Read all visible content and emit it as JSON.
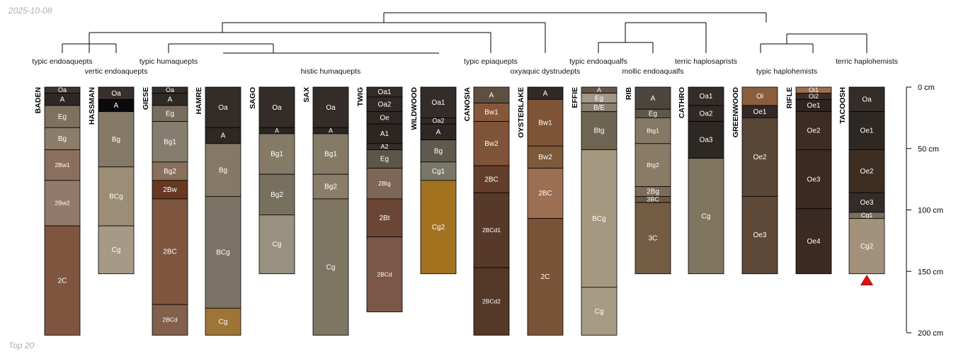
{
  "header": {
    "date": "2025-10-08"
  },
  "footer": {
    "caption": "Top 20"
  },
  "depth_axis": {
    "max_cm": 200,
    "ticks": [
      0,
      50,
      100,
      150,
      200
    ],
    "unit": "cm"
  },
  "colors": {
    "line": "#000000",
    "axis": "#000000",
    "marker": "#e01010"
  },
  "taxa": [
    {
      "id": "typic-endoaquepts",
      "label": "typic endoaquepts"
    },
    {
      "id": "vertic-endoaquepts",
      "label": "vertic endoaquepts"
    },
    {
      "id": "typic-humaquepts",
      "label": "typic humaquepts"
    },
    {
      "id": "histic-humaquepts",
      "label": "histic humaquepts"
    },
    {
      "id": "typic-epiaquepts",
      "label": "typic epiaquepts"
    },
    {
      "id": "oxyaquic-dystrudepts",
      "label": "oxyaquic dystrudepts"
    },
    {
      "id": "typic-endoaqualfs",
      "label": "typic endoaqualfs"
    },
    {
      "id": "mollic-endoaqualfs",
      "label": "mollic endoaqualfs"
    },
    {
      "id": "terric-haplosaprists",
      "label": "terric haplosaprists"
    },
    {
      "id": "typic-haplohemists",
      "label": "typic haplohemists"
    },
    {
      "id": "terric-haplohemists",
      "label": "terric haplohemists"
    }
  ],
  "profiles": [
    {
      "name": "BADEN",
      "horizons": [
        {
          "top": 0,
          "bottom": 5,
          "name": "Oa",
          "color": "#3c3430"
        },
        {
          "top": 5,
          "bottom": 15,
          "name": "A",
          "color": "#2e2824"
        },
        {
          "top": 15,
          "bottom": 33,
          "name": "Eg",
          "color": "#7e725e"
        },
        {
          "top": 33,
          "bottom": 51,
          "name": "Bg",
          "color": "#8a7d69"
        },
        {
          "top": 51,
          "bottom": 76,
          "name": "2Bw1",
          "color": "#8a6f5e"
        },
        {
          "top": 76,
          "bottom": 113,
          "name": "2Bw2",
          "color": "#917a6a"
        },
        {
          "top": 113,
          "bottom": 202,
          "name": "2C",
          "color": "#7e5640"
        }
      ]
    },
    {
      "name": "HASSMAN",
      "horizons": [
        {
          "top": 0,
          "bottom": 10,
          "name": "Oa",
          "color": "#39302c"
        },
        {
          "top": 10,
          "bottom": 20,
          "name": "A",
          "color": "#0a0a0a"
        },
        {
          "top": 20,
          "bottom": 65,
          "name": "Bg",
          "color": "#857967"
        },
        {
          "top": 65,
          "bottom": 113,
          "name": "BCg",
          "color": "#9c8d77"
        },
        {
          "top": 113,
          "bottom": 152,
          "name": "Cg",
          "color": "#a69a86"
        }
      ]
    },
    {
      "name": "GIESE",
      "horizons": [
        {
          "top": 0,
          "bottom": 5,
          "name": "Oa",
          "color": "#352d29"
        },
        {
          "top": 5,
          "bottom": 15,
          "name": "A",
          "color": "#302a26"
        },
        {
          "top": 15,
          "bottom": 28,
          "name": "Eg",
          "color": "#786d5f"
        },
        {
          "top": 28,
          "bottom": 61,
          "name": "Bg1",
          "color": "#857d6e"
        },
        {
          "top": 61,
          "bottom": 76,
          "name": "Bg2",
          "color": "#8a6f5c"
        },
        {
          "top": 76,
          "bottom": 91,
          "name": "2Bw",
          "color": "#683823"
        },
        {
          "top": 91,
          "bottom": 177,
          "name": "2BC",
          "color": "#7e5640"
        },
        {
          "top": 177,
          "bottom": 202,
          "name": "2BCd",
          "color": "#82604c"
        }
      ]
    },
    {
      "name": "HAMRE",
      "horizons": [
        {
          "top": 0,
          "bottom": 33,
          "name": "Oa",
          "color": "#332c28"
        },
        {
          "top": 33,
          "bottom": 46,
          "name": "A",
          "color": "#2e2824"
        },
        {
          "top": 46,
          "bottom": 89,
          "name": "Bg",
          "color": "#857865"
        },
        {
          "top": 89,
          "bottom": 180,
          "name": "BCg",
          "color": "#7b7365"
        },
        {
          "top": 180,
          "bottom": 202,
          "name": "Cg",
          "color": "#9e7438"
        }
      ]
    },
    {
      "name": "SAGO",
      "horizons": [
        {
          "top": 0,
          "bottom": 33,
          "name": "Oa",
          "color": "#332c28"
        },
        {
          "top": 33,
          "bottom": 38,
          "name": "A",
          "color": "#2c2622"
        },
        {
          "top": 38,
          "bottom": 71,
          "name": "Bg1",
          "color": "#857a66"
        },
        {
          "top": 71,
          "bottom": 104,
          "name": "Bg2",
          "color": "#78705f"
        },
        {
          "top": 104,
          "bottom": 152,
          "name": "Cg",
          "color": "#989080"
        }
      ]
    },
    {
      "name": "SAX",
      "horizons": [
        {
          "top": 0,
          "bottom": 33,
          "name": "Oa",
          "color": "#332c28"
        },
        {
          "top": 33,
          "bottom": 38,
          "name": "A",
          "color": "#2c2622"
        },
        {
          "top": 38,
          "bottom": 71,
          "name": "Bg1",
          "color": "#857a66"
        },
        {
          "top": 71,
          "bottom": 91,
          "name": "Bg2",
          "color": "#8a7d69"
        },
        {
          "top": 91,
          "bottom": 202,
          "name": "Cg",
          "color": "#7e7563"
        }
      ]
    },
    {
      "name": "TWIG",
      "horizons": [
        {
          "top": 0,
          "bottom": 8,
          "name": "Oa1",
          "color": "#322b27"
        },
        {
          "top": 8,
          "bottom": 20,
          "name": "Oa2",
          "color": "#302925"
        },
        {
          "top": 20,
          "bottom": 30,
          "name": "Oe",
          "color": "#2e2723"
        },
        {
          "top": 30,
          "bottom": 46,
          "name": "A1",
          "color": "#2c2622"
        },
        {
          "top": 46,
          "bottom": 51,
          "name": "A2",
          "color": "#332c28"
        },
        {
          "top": 51,
          "bottom": 66,
          "name": "Eg",
          "color": "#5e5549"
        },
        {
          "top": 66,
          "bottom": 91,
          "name": "2Btg",
          "color": "#7e6657"
        },
        {
          "top": 91,
          "bottom": 122,
          "name": "2Bt",
          "color": "#6b4636"
        },
        {
          "top": 122,
          "bottom": 183,
          "name": "2BCd",
          "color": "#7a5748"
        }
      ]
    },
    {
      "name": "WILDWOOD",
      "horizons": [
        {
          "top": 0,
          "bottom": 25,
          "name": "Oa1",
          "color": "#332c28"
        },
        {
          "top": 25,
          "bottom": 30,
          "name": "Oa2",
          "color": "#302925"
        },
        {
          "top": 30,
          "bottom": 43,
          "name": "A",
          "color": "#2e2824"
        },
        {
          "top": 43,
          "bottom": 61,
          "name": "Bg",
          "color": "#5e5a4e"
        },
        {
          "top": 61,
          "bottom": 76,
          "name": "Cg1",
          "color": "#7a7668"
        },
        {
          "top": 76,
          "bottom": 152,
          "name": "Cg2",
          "color": "#a2721f"
        }
      ]
    },
    {
      "name": "CANOSIA",
      "horizons": [
        {
          "top": 0,
          "bottom": 13,
          "name": "A",
          "color": "#5e5040"
        },
        {
          "top": 13,
          "bottom": 28,
          "name": "Bw1",
          "color": "#86583a"
        },
        {
          "top": 28,
          "bottom": 64,
          "name": "Bw2",
          "color": "#7e5338"
        },
        {
          "top": 64,
          "bottom": 86,
          "name": "2BC",
          "color": "#633e2c"
        },
        {
          "top": 86,
          "bottom": 147,
          "name": "2BCd1",
          "color": "#573929"
        },
        {
          "top": 147,
          "bottom": 202,
          "name": "2BCd2",
          "color": "#543828"
        }
      ]
    },
    {
      "name": "OYSTERLAKE",
      "horizons": [
        {
          "top": 0,
          "bottom": 10,
          "name": "A",
          "color": "#302a26"
        },
        {
          "top": 10,
          "bottom": 48,
          "name": "Bw1",
          "color": "#7e5436"
        },
        {
          "top": 48,
          "bottom": 66,
          "name": "Bw2",
          "color": "#7c5a3a"
        },
        {
          "top": 66,
          "bottom": 107,
          "name": "2BC",
          "color": "#9c6e52"
        },
        {
          "top": 107,
          "bottom": 202,
          "name": "2C",
          "color": "#7a5438"
        }
      ]
    },
    {
      "name": "EFFIE",
      "horizons": [
        {
          "top": 0,
          "bottom": 5,
          "name": "A",
          "color": "#635647"
        },
        {
          "top": 5,
          "bottom": 13,
          "name": "Eg",
          "color": "#a29789"
        },
        {
          "top": 13,
          "bottom": 20,
          "name": "B/E",
          "color": "#8a7e6e"
        },
        {
          "top": 20,
          "bottom": 51,
          "name": "Btg",
          "color": "#6e6452"
        },
        {
          "top": 51,
          "bottom": 163,
          "name": "BCg",
          "color": "#a49880"
        },
        {
          "top": 163,
          "bottom": 202,
          "name": "Cg",
          "color": "#a69b84"
        }
      ]
    },
    {
      "name": "RIB",
      "horizons": [
        {
          "top": 0,
          "bottom": 18,
          "name": "A",
          "color": "#4e463e"
        },
        {
          "top": 18,
          "bottom": 25,
          "name": "Eg",
          "color": "#5e574c"
        },
        {
          "top": 25,
          "bottom": 46,
          "name": "Btg1",
          "color": "#857865"
        },
        {
          "top": 46,
          "bottom": 81,
          "name": "Btg2",
          "color": "#8a7b67"
        },
        {
          "top": 81,
          "bottom": 89,
          "name": "2Bg",
          "color": "#7d6a57"
        },
        {
          "top": 89,
          "bottom": 94,
          "name": "3BC",
          "color": "#6b5845"
        },
        {
          "top": 94,
          "bottom": 152,
          "name": "3C",
          "color": "#745c44"
        }
      ]
    },
    {
      "name": "CATHRO",
      "horizons": [
        {
          "top": 0,
          "bottom": 15,
          "name": "Oa1",
          "color": "#332c28"
        },
        {
          "top": 15,
          "bottom": 28,
          "name": "Oa2",
          "color": "#302925"
        },
        {
          "top": 28,
          "bottom": 58,
          "name": "Oa3",
          "color": "#2e2824"
        },
        {
          "top": 58,
          "bottom": 152,
          "name": "Cg",
          "color": "#807660"
        }
      ]
    },
    {
      "name": "GREENWOOD",
      "horizons": [
        {
          "top": 0,
          "bottom": 15,
          "name": "Oi",
          "color": "#8a5e3c"
        },
        {
          "top": 15,
          "bottom": 25,
          "name": "Oe1",
          "color": "#332a25"
        },
        {
          "top": 25,
          "bottom": 89,
          "name": "Oe2",
          "color": "#5a4636"
        },
        {
          "top": 89,
          "bottom": 152,
          "name": "Oe3",
          "color": "#5e4838"
        }
      ]
    },
    {
      "name": "RIFLE",
      "horizons": [
        {
          "top": 0,
          "bottom": 5,
          "name": "Oi1",
          "color": "#9c6e4c"
        },
        {
          "top": 5,
          "bottom": 10,
          "name": "Oi2",
          "color": "#3a2e28"
        },
        {
          "top": 10,
          "bottom": 20,
          "name": "Oe1",
          "color": "#2e2420"
        },
        {
          "top": 20,
          "bottom": 51,
          "name": "Oe2",
          "color": "#3e2c24"
        },
        {
          "top": 51,
          "bottom": 99,
          "name": "Oe3",
          "color": "#3a2a22"
        },
        {
          "top": 99,
          "bottom": 152,
          "name": "Oe4",
          "color": "#3a2a22"
        }
      ]
    },
    {
      "name": "TACOOSH",
      "horizons": [
        {
          "top": 0,
          "bottom": 20,
          "name": "Oa",
          "color": "#332c28"
        },
        {
          "top": 20,
          "bottom": 51,
          "name": "Oe1",
          "color": "#2e2824"
        },
        {
          "top": 51,
          "bottom": 86,
          "name": "Oe2",
          "color": "#3e2e22"
        },
        {
          "top": 86,
          "bottom": 102,
          "name": "Oe3",
          "color": "#332c28"
        },
        {
          "top": 102,
          "bottom": 107,
          "name": "Cg1",
          "color": "#7a6e5e"
        },
        {
          "top": 107,
          "bottom": 152,
          "name": "Cg2",
          "color": "#a2927c"
        }
      ],
      "marker": "warning-triangle"
    }
  ]
}
